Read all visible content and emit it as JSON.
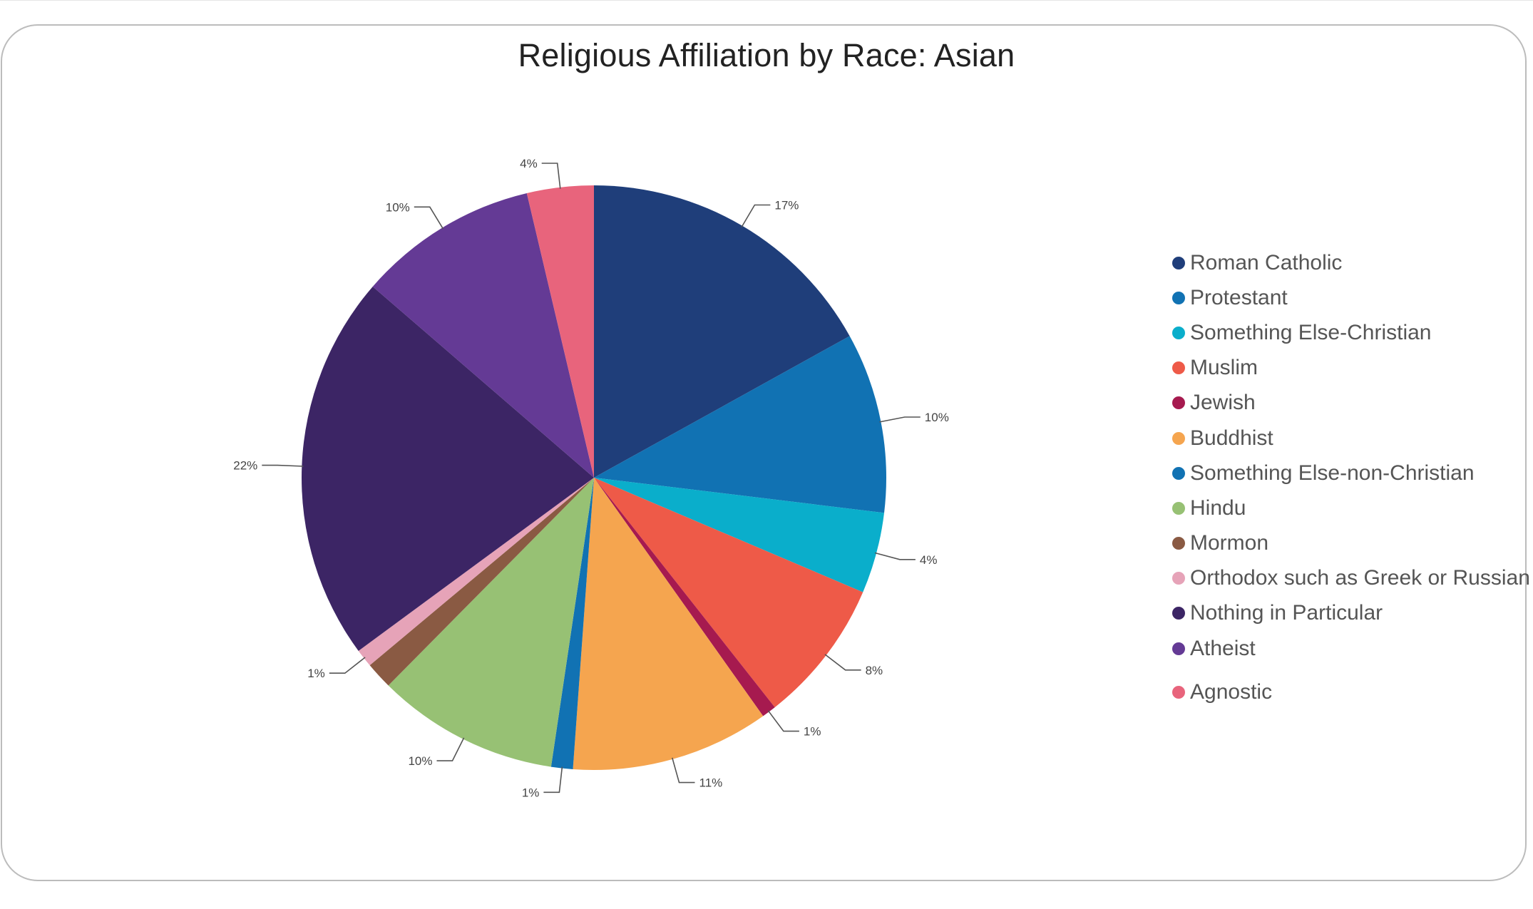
{
  "chart_data": {
    "type": "pie",
    "title": "Religious Affiliation by Race: Asian",
    "legend_position": "right",
    "slices": [
      {
        "name": "Roman Catholic",
        "value": 17,
        "label": "17%",
        "color": "#1f3e7a"
      },
      {
        "name": "Protestant",
        "value": 10,
        "label": "10%",
        "color": "#1172b3"
      },
      {
        "name": "Something Else-Christian",
        "value": 4.5,
        "label": "4%",
        "color": "#0aaecb"
      },
      {
        "name": "Muslim",
        "value": 8,
        "label": "8%",
        "color": "#ee5a48"
      },
      {
        "name": "Jewish",
        "value": 0.8,
        "label": "1%",
        "color": "#a61a4f"
      },
      {
        "name": "Buddhist",
        "value": 11,
        "label": "11%",
        "color": "#f5a54f"
      },
      {
        "name": "Something Else-non-Christian",
        "value": 1.2,
        "label": "1%",
        "color": "#1172b3"
      },
      {
        "name": "Hindu",
        "value": 10.1,
        "label": "10%",
        "color": "#97c174"
      },
      {
        "name": "Mormon",
        "value": 1.5,
        "label": "",
        "color": "#8a5a43"
      },
      {
        "name": "Orthodox such as Greek or Russian",
        "value": 1,
        "label": "1%",
        "color": "#e6a3b8"
      },
      {
        "name": "Nothing in Particular",
        "value": 21.5,
        "label": "22%",
        "color": "#3c2565"
      },
      {
        "name": "Atheist",
        "value": 10,
        "label": "10%",
        "color": "#643a95"
      },
      {
        "name": "Agnostic",
        "value": 3.7,
        "label": "4%",
        "color": "#e8647c"
      }
    ]
  }
}
